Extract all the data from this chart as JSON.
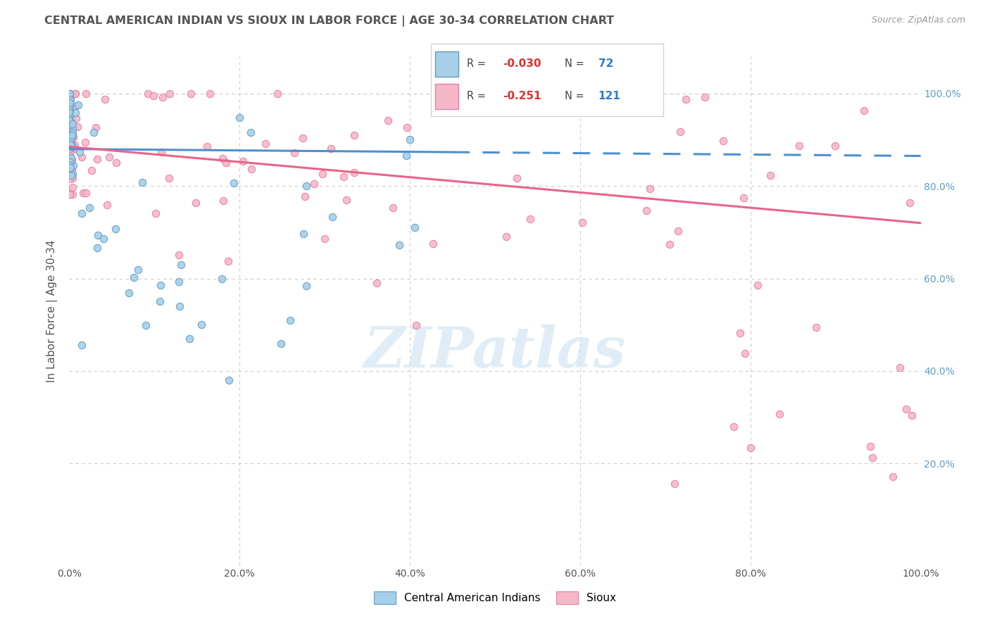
{
  "title": "CENTRAL AMERICAN INDIAN VS SIOUX IN LABOR FORCE | AGE 30-34 CORRELATION CHART",
  "source": "Source: ZipAtlas.com",
  "ylabel": "In Labor Force | Age 30-34",
  "xlim": [
    0.0,
    1.0
  ],
  "ylim": [
    -0.02,
    1.08
  ],
  "color_blue": "#a8cfe8",
  "color_blue_edge": "#5b9ec9",
  "color_pink": "#f4b8c8",
  "color_pink_edge": "#e87fa0",
  "color_blue_line": "#4d90d0",
  "color_pink_line": "#e8648a",
  "watermark": "ZIPatlas",
  "background_color": "#ffffff",
  "grid_color": "#cccccc",
  "legend_r1": "-0.030",
  "legend_n1": "72",
  "legend_r2": "-0.251",
  "legend_n2": "121",
  "right_tick_color": "#5b9ec9",
  "title_color": "#555555"
}
